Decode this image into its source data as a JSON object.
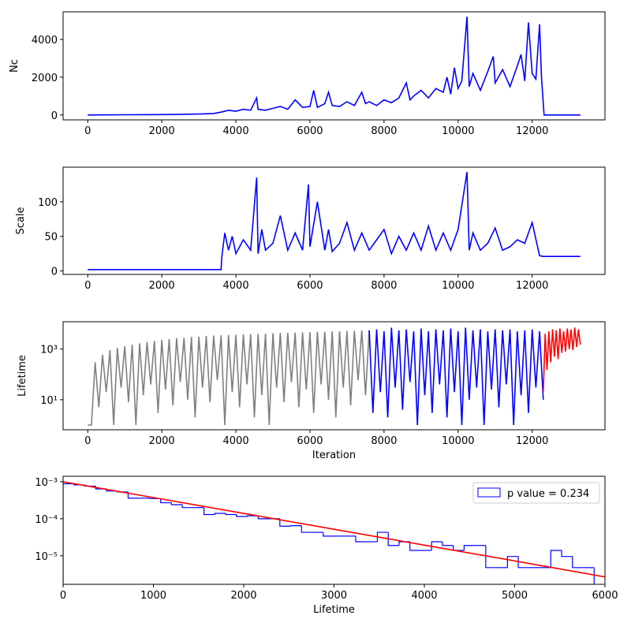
{
  "chart_data": [
    {
      "type": "line",
      "ylabel": "Nc",
      "xlim": [
        -665,
        13965
      ],
      "ylim": [
        -260,
        5460
      ],
      "xticks": [
        0,
        2000,
        4000,
        6000,
        8000,
        10000,
        12000
      ],
      "yticks": [
        0,
        2000,
        4000
      ],
      "series": [
        {
          "color": "blue",
          "x": [
            0,
            500,
            1000,
            1500,
            2000,
            2500,
            3000,
            3400,
            3600,
            3800,
            4000,
            4200,
            4400,
            4560,
            4600,
            4800,
            5000,
            5200,
            5400,
            5600,
            5800,
            6000,
            6100,
            6200,
            6400,
            6500,
            6600,
            6800,
            7000,
            7200,
            7400,
            7500,
            7600,
            7800,
            8000,
            8200,
            8400,
            8600,
            8700,
            8800,
            9000,
            9200,
            9400,
            9600,
            9700,
            9800,
            9900,
            10000,
            10100,
            10240,
            10300,
            10400,
            10600,
            10800,
            10950,
            11000,
            11200,
            11400,
            11600,
            11700,
            11800,
            11900,
            12000,
            12100,
            12200,
            12250,
            12320,
            13300
          ],
          "values": [
            0,
            5,
            10,
            15,
            20,
            30,
            50,
            80,
            150,
            250,
            200,
            300,
            250,
            900,
            300,
            250,
            350,
            450,
            300,
            800,
            400,
            450,
            1300,
            400,
            600,
            1200,
            500,
            450,
            700,
            500,
            1200,
            600,
            700,
            500,
            800,
            650,
            900,
            1700,
            800,
            1000,
            1300,
            900,
            1400,
            1200,
            2000,
            1100,
            2500,
            1400,
            1800,
            5200,
            1500,
            2200,
            1300,
            2300,
            3100,
            1700,
            2400,
            1500,
            2600,
            3200,
            1800,
            4900,
            2200,
            1900,
            4800,
            2000,
            0,
            0
          ]
        }
      ]
    },
    {
      "type": "line",
      "ylabel": "Scale",
      "xlim": [
        -665,
        13965
      ],
      "ylim": [
        -5,
        150
      ],
      "xticks": [
        0,
        2000,
        4000,
        6000,
        8000,
        10000,
        12000
      ],
      "yticks": [
        0,
        50,
        100
      ],
      "series": [
        {
          "color": "blue",
          "x": [
            0,
            3600,
            3620,
            3700,
            3800,
            3900,
            4000,
            4200,
            4400,
            4560,
            4600,
            4700,
            4800,
            5000,
            5200,
            5400,
            5600,
            5800,
            5960,
            6000,
            6200,
            6400,
            6500,
            6600,
            6800,
            7000,
            7200,
            7400,
            7600,
            7800,
            8000,
            8200,
            8400,
            8600,
            8800,
            9000,
            9200,
            9400,
            9600,
            9800,
            10000,
            10240,
            10300,
            10400,
            10600,
            10800,
            11000,
            11200,
            11400,
            11600,
            11800,
            12000,
            12200,
            12300,
            13300
          ],
          "values": [
            2,
            2,
            20,
            55,
            30,
            50,
            25,
            45,
            30,
            135,
            25,
            60,
            30,
            40,
            80,
            30,
            55,
            30,
            125,
            35,
            100,
            30,
            60,
            28,
            40,
            70,
            30,
            55,
            30,
            45,
            60,
            25,
            50,
            30,
            55,
            30,
            65,
            30,
            55,
            30,
            60,
            143,
            30,
            55,
            30,
            40,
            62,
            30,
            35,
            45,
            40,
            70,
            22,
            21,
            21
          ]
        }
      ]
    },
    {
      "type": "line",
      "ylabel": "Lifetime",
      "xlabel": "Iteration",
      "ylog": true,
      "xlim": [
        -665,
        13965
      ],
      "ylim": [
        0.65,
        12000
      ],
      "xticks": [
        0,
        2000,
        4000,
        6000,
        8000,
        10000,
        12000
      ],
      "yticks": [
        {
          "value": 10,
          "label": "10¹"
        },
        {
          "value": 1000,
          "label": "10³"
        }
      ],
      "series": [
        {
          "color": "gray",
          "x": [
            0,
            100,
            200,
            300,
            400,
            500,
            600,
            700,
            800,
            900,
            1000,
            1100,
            1200,
            1300,
            1400,
            1500,
            1600,
            1700,
            1800,
            1900,
            2000,
            2100,
            2200,
            2300,
            2400,
            2500,
            2600,
            2700,
            2800,
            2900,
            3000,
            3100,
            3200,
            3300,
            3400,
            3500,
            3600,
            3700,
            3800,
            3900,
            4000,
            4100,
            4200,
            4300,
            4400,
            4500,
            4600,
            4700,
            4800,
            4900,
            5000,
            5100,
            5200,
            5300,
            5400,
            5500,
            5600,
            5700,
            5800,
            5900,
            6000,
            6100,
            6200,
            6300,
            6400,
            6500,
            6600,
            6700,
            6800,
            6900,
            7000,
            7100,
            7200,
            7300,
            7400,
            7500,
            7600
          ],
          "values": [
            1,
            1,
            300,
            5,
            600,
            20,
            900,
            1,
            1100,
            30,
            1300,
            8,
            1500,
            1,
            1700,
            15,
            1900,
            40,
            2100,
            3,
            2300,
            25,
            2500,
            6,
            2700,
            50,
            2800,
            10,
            3000,
            2,
            3100,
            30,
            3300,
            8,
            3400,
            60,
            3500,
            1,
            3600,
            20,
            3700,
            5,
            3800,
            40,
            3900,
            2,
            4000,
            15,
            4100,
            1,
            4200,
            30,
            4300,
            8,
            4400,
            50,
            4500,
            5,
            4600,
            25,
            4700,
            3,
            4800,
            40,
            4900,
            10,
            5000,
            2,
            5100,
            30,
            5200,
            6,
            5300,
            60,
            5400,
            15,
            5500
          ]
        },
        {
          "color": "blue",
          "x": [
            7600,
            7700,
            7800,
            7900,
            8000,
            8100,
            8200,
            8300,
            8400,
            8500,
            8600,
            8700,
            8800,
            8900,
            9000,
            9100,
            9200,
            9300,
            9400,
            9500,
            9600,
            9700,
            9800,
            9900,
            10000,
            10100,
            10200,
            10300,
            10400,
            10500,
            10600,
            10700,
            10800,
            10900,
            11000,
            11100,
            11200,
            11300,
            11400,
            11500,
            11600,
            11700,
            11800,
            11900,
            12000,
            12100,
            12200,
            12300
          ],
          "values": [
            5500,
            3,
            6000,
            20,
            5000,
            2,
            7000,
            30,
            5500,
            4,
            6000,
            50,
            5000,
            1,
            6500,
            15,
            5000,
            3,
            6000,
            40,
            5500,
            2,
            6500,
            20,
            5000,
            1,
            7000,
            10,
            5500,
            30,
            6000,
            1,
            5000,
            25,
            6000,
            5,
            5500,
            40,
            6000,
            1,
            5000,
            15,
            5500,
            3,
            6000,
            30,
            5000,
            10
          ]
        },
        {
          "color": "red",
          "x": [
            12300,
            12350,
            12400,
            12450,
            12500,
            12550,
            12600,
            12650,
            12700,
            12750,
            12800,
            12850,
            12900,
            12950,
            13000,
            13050,
            13100,
            13150,
            13200,
            13250,
            13300
          ],
          "values": [
            20,
            4000,
            150,
            5000,
            300,
            6000,
            500,
            5500,
            400,
            6500,
            700,
            5000,
            800,
            6500,
            1000,
            6000,
            900,
            7000,
            1200,
            6000,
            1500
          ]
        }
      ]
    },
    {
      "type": "histogram",
      "xlabel": "Lifetime",
      "ylog": true,
      "xlim": [
        0,
        6000
      ],
      "ylim": [
        1.7e-06,
        0.0014
      ],
      "xticks": [
        0,
        1000,
        2000,
        3000,
        4000,
        5000,
        6000
      ],
      "yticks": [
        {
          "value": 1e-05,
          "label": "10⁻⁵"
        },
        {
          "value": 0.0001,
          "label": "10⁻⁴"
        },
        {
          "value": 0.001,
          "label": "10⁻³"
        }
      ],
      "legend": "upper right",
      "name": "p value = 0.234",
      "color": "blue",
      "bins": [
        0,
        120,
        240,
        360,
        480,
        600,
        720,
        840,
        960,
        1080,
        1200,
        1320,
        1440,
        1560,
        1680,
        1800,
        1920,
        2040,
        2160,
        2280,
        2400,
        2520,
        2640,
        2760,
        2880,
        3000,
        3120,
        3240,
        3360,
        3480,
        3600,
        3720,
        3840,
        3960,
        4080,
        4200,
        4320,
        4440,
        4560,
        4680,
        4800,
        4920,
        5040,
        5160,
        5280,
        5400,
        5520,
        5640,
        5760,
        5880,
        6000
      ],
      "values": [
        0.00088,
        0.00082,
        0.00076,
        0.00064,
        0.00056,
        0.00053,
        0.00036,
        0.00036,
        0.00035,
        0.00027,
        0.00024,
        0.0002,
        0.0002,
        0.00013,
        0.00014,
        0.00013,
        0.000115,
        0.00012,
        0.0001,
        0.0001,
        6.3e-05,
        6.5e-05,
        4.3e-05,
        4.3e-05,
        3.4e-05,
        3.4e-05,
        3.4e-05,
        2.4e-05,
        2.4e-05,
        4.3e-05,
        1.9e-05,
        2.4e-05,
        1.4e-05,
        1.4e-05,
        2.4e-05,
        1.9e-05,
        1.4e-05,
        1.9e-05,
        1.9e-05,
        4.8e-06,
        4.8e-06,
        9.6e-06,
        4.8e-06,
        4.8e-06,
        4.8e-06,
        1.4e-05,
        9.6e-06,
        4.8e-06,
        4.8e-06,
        0
      ],
      "fit": {
        "color": "red",
        "x": [
          0,
          1000,
          2000,
          3000,
          4000,
          5000,
          6000
        ],
        "values": [
          0.001,
          0.000373,
          0.000139,
          5.2e-05,
          1.94e-05,
          7.3e-06,
          2.7e-06
        ]
      }
    }
  ]
}
